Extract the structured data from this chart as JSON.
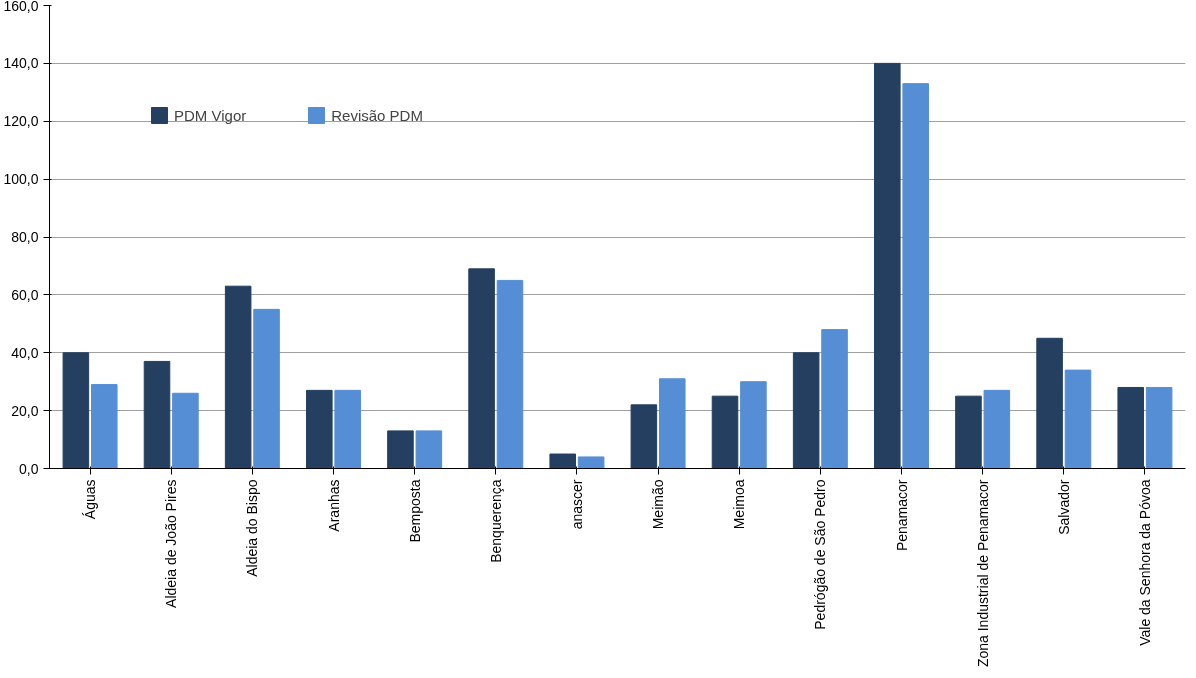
{
  "chart_data": {
    "type": "bar",
    "categories": [
      "Águas",
      "Aldeia de João Pires",
      "Aldeia do Bispo",
      "Aranhas",
      "Bemposta",
      "Benquerença",
      "anascer",
      "Meimão",
      "Meimoa",
      "Pedrógão de São Pedro",
      "Penamacor",
      "Zona Industrial de Penamacor",
      "Salvador",
      "Vale da Senhora da Póvoa"
    ],
    "series": [
      {
        "name": "PDM Vigor",
        "color": "#243f60",
        "values": [
          40,
          37,
          63,
          27,
          13,
          69,
          5,
          22,
          25,
          40,
          140,
          25,
          45,
          28
        ]
      },
      {
        "name": "Revisão PDM",
        "color": "#558ed5",
        "values": [
          29,
          26,
          55,
          27,
          13,
          65,
          4,
          31,
          30,
          48,
          133,
          27,
          34,
          28
        ]
      }
    ],
    "ylim": [
      0,
      160
    ],
    "yticks": [
      {
        "value": 0,
        "label": "0,0"
      },
      {
        "value": 20,
        "label": "20,0"
      },
      {
        "value": 40,
        "label": "40,0"
      },
      {
        "value": 60,
        "label": "60,0"
      },
      {
        "value": 80,
        "label": "80,0"
      },
      {
        "value": 100,
        "label": "100,0"
      },
      {
        "value": 120,
        "label": "120,0"
      },
      {
        "value": 140,
        "label": "140,0"
      },
      {
        "value": 160,
        "label": "160,0"
      }
    ],
    "grid": "y",
    "legend": "top left"
  }
}
